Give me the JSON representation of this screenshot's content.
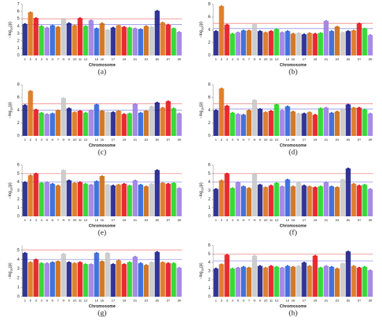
{
  "chart_data": [
    {
      "type": "manhattan",
      "caption": "(a)",
      "xlabel": "Chromosome",
      "ylabel_parts": [
        "−log",
        "10",
        "(p)"
      ],
      "categories": [
        "1",
        "2",
        "3",
        "4",
        "5",
        "6",
        "7",
        "8",
        "9",
        "10",
        "11",
        "12",
        null,
        "14",
        "15",
        null,
        "17",
        null,
        "19",
        null,
        "21",
        null,
        "23",
        null,
        "25",
        null,
        "27",
        null,
        "29"
      ],
      "values": [
        4.3,
        5.9,
        5.1,
        4.0,
        3.8,
        4.1,
        3.9,
        5.0,
        4.4,
        4.1,
        5.1,
        4.0,
        4.8,
        3.7,
        4.4,
        3.5,
        3.8,
        4.1,
        3.9,
        3.8,
        3.7,
        3.6,
        4.0,
        3.9,
        6.1,
        4.5,
        4.2,
        3.7,
        3.2
      ],
      "colors": [
        "#1b1f8a",
        "#d9731a",
        "#e6141b",
        "#22d522",
        "#9b7de3",
        "#2f63d6",
        "#cc6a12",
        "#c8c8c8"
      ],
      "thresholds": [
        {
          "value": 5,
          "color": "#ee6a6a"
        },
        {
          "value": 4.2,
          "color": "#6f73e6"
        }
      ],
      "ylim": [
        0,
        7
      ],
      "yticks": [
        0,
        1,
        2,
        3,
        4,
        5,
        6,
        7
      ]
    },
    {
      "type": "manhattan",
      "caption": "(b)",
      "xlabel": "Chromosome",
      "ylabel_parts": [
        "−log",
        "10",
        "(p)"
      ],
      "categories": [
        "1",
        "2",
        "3",
        "4",
        "5",
        "6",
        "7",
        "8",
        "9",
        "10",
        "11",
        "12",
        null,
        "14",
        "15",
        null,
        "17",
        null,
        "19",
        null,
        "21",
        null,
        "23",
        null,
        "25",
        null,
        "27",
        null,
        "29"
      ],
      "values": [
        3.8,
        7.7,
        4.8,
        3.4,
        3.6,
        3.9,
        3.9,
        4.9,
        3.8,
        3.6,
        3.8,
        4.1,
        3.6,
        3.8,
        3.4,
        3.5,
        3.3,
        3.5,
        3.4,
        3.5,
        5.4,
        3.8,
        4.5,
        3.6,
        3.8,
        3.9,
        5.0,
        4.2,
        3.2
      ],
      "colors": [
        "#1b1f8a",
        "#d9731a",
        "#e6141b",
        "#22d522",
        "#9b7de3",
        "#2f63d6",
        "#cc6a12",
        "#c8c8c8"
      ],
      "thresholds": [
        {
          "value": 5,
          "color": "#ee6a6a"
        },
        {
          "value": 4.2,
          "color": "#6f73e6"
        }
      ],
      "ylim": [
        0,
        8
      ],
      "yticks": [
        0,
        2,
        4,
        6,
        8
      ]
    },
    {
      "type": "manhattan",
      "caption": "(c)",
      "xlabel": "Chromosome",
      "ylabel_parts": [
        "−log",
        "10",
        "(p)"
      ],
      "categories": [
        "1",
        "2",
        "3",
        "4",
        "5",
        "6",
        "7",
        "8",
        "9",
        "10",
        "11",
        "12",
        null,
        "14",
        "15",
        null,
        "17",
        null,
        "19",
        null,
        "21",
        null,
        "23",
        null,
        "25",
        null,
        "27",
        null,
        "29"
      ],
      "values": [
        4.8,
        7.0,
        4.1,
        3.6,
        3.4,
        3.5,
        4.0,
        5.9,
        4.3,
        3.7,
        3.9,
        3.6,
        4.0,
        4.9,
        3.9,
        3.7,
        3.7,
        3.9,
        3.4,
        3.5,
        5.0,
        3.6,
        3.9,
        4.6,
        5.2,
        4.4,
        5.4,
        4.3,
        3.5
      ],
      "colors": [
        "#1b1f8a",
        "#d9731a",
        "#e6141b",
        "#22d522",
        "#9b7de3",
        "#2f63d6",
        "#cc6a12",
        "#c8c8c8"
      ],
      "thresholds": [
        {
          "value": 5,
          "color": "#ee6a6a"
        },
        {
          "value": 4,
          "color": "#6f73e6"
        }
      ],
      "ylim": [
        0,
        8
      ],
      "yticks": [
        0,
        2,
        4,
        6,
        8
      ]
    },
    {
      "type": "manhattan",
      "caption": "(d)",
      "xlabel": "Chromosome",
      "ylabel_parts": [
        "−log",
        "10",
        "(p)"
      ],
      "categories": [
        "1",
        "2",
        "3",
        "4",
        "5",
        "6",
        "7",
        "8",
        "9",
        "10",
        "11",
        "12",
        null,
        "14",
        "15",
        null,
        "17",
        null,
        "19",
        null,
        "21",
        null,
        "23",
        null,
        "25",
        null,
        "27",
        null,
        "29"
      ],
      "values": [
        4.0,
        7.4,
        4.7,
        3.6,
        3.4,
        3.3,
        4.0,
        5.6,
        4.2,
        3.7,
        3.9,
        4.9,
        4.0,
        4.6,
        3.8,
        3.5,
        3.5,
        3.7,
        3.3,
        4.3,
        4.4,
        3.6,
        3.8,
        4.2,
        4.9,
        4.4,
        4.4,
        4.1,
        3.5
      ],
      "colors": [
        "#1b1f8a",
        "#d9731a",
        "#e6141b",
        "#22d522",
        "#9b7de3",
        "#2f63d6",
        "#cc6a12",
        "#c8c8c8"
      ],
      "thresholds": [
        {
          "value": 5,
          "color": "#ee6a6a"
        },
        {
          "value": 4.2,
          "color": "#6f73e6"
        }
      ],
      "ylim": [
        0,
        8
      ],
      "yticks": [
        0,
        2,
        4,
        6,
        8
      ]
    },
    {
      "type": "manhattan",
      "caption": "(e)",
      "xlabel": "Chromosome",
      "ylabel_parts": [
        "−log",
        "10",
        "(p)"
      ],
      "categories": [
        "1",
        "2",
        "3",
        "4",
        "5",
        "6",
        "7",
        "8",
        "9",
        "10",
        "11",
        "12",
        null,
        "14",
        "15",
        null,
        "17",
        null,
        "19",
        null,
        "21",
        null,
        "23",
        null,
        "25",
        null,
        "27",
        null,
        "29"
      ],
      "values": [
        4.0,
        4.8,
        5.0,
        3.9,
        4.0,
        3.8,
        3.6,
        5.4,
        4.2,
        3.9,
        4.0,
        3.8,
        3.7,
        4.1,
        4.7,
        3.7,
        3.6,
        3.7,
        3.8,
        3.6,
        4.2,
        3.7,
        3.5,
        3.8,
        5.4,
        3.9,
        3.8,
        3.9,
        3.3
      ],
      "colors": [
        "#1b1f8a",
        "#d9731a",
        "#e6141b",
        "#22d522",
        "#9b7de3",
        "#2f63d6",
        "#cc6a12",
        "#c8c8c8"
      ],
      "thresholds": [
        {
          "value": 5,
          "color": "#ee6a6a"
        },
        {
          "value": 4,
          "color": "#6f73e6"
        }
      ],
      "ylim": [
        0,
        6
      ],
      "yticks": [
        0,
        1,
        2,
        3,
        4,
        5,
        6
      ]
    },
    {
      "type": "manhattan",
      "caption": "(f)",
      "xlabel": "Chromosome",
      "ylabel_parts": [
        "−log",
        "10",
        "(p)"
      ],
      "categories": [
        "1",
        "2",
        "3",
        "4",
        "5",
        "6",
        "7",
        "8",
        "9",
        "10",
        "11",
        "12",
        null,
        "14",
        "15",
        null,
        "17",
        null,
        "19",
        null,
        "21",
        null,
        "23",
        null,
        "25",
        null,
        "27",
        null,
        "29"
      ],
      "values": [
        3.2,
        4.2,
        5.0,
        3.3,
        4.0,
        3.5,
        3.3,
        5.0,
        3.7,
        3.4,
        3.6,
        3.9,
        3.5,
        4.3,
        3.5,
        4.0,
        3.6,
        3.5,
        3.4,
        3.5,
        4.0,
        3.5,
        3.4,
        4.3,
        5.6,
        3.8,
        3.6,
        3.7,
        3.2
      ],
      "colors": [
        "#1b1f8a",
        "#d9731a",
        "#e6141b",
        "#22d522",
        "#9b7de3",
        "#2f63d6",
        "#cc6a12",
        "#c8c8c8"
      ],
      "thresholds": [
        {
          "value": 5,
          "color": "#ee6a6a"
        },
        {
          "value": 4,
          "color": "#6f73e6"
        }
      ],
      "ylim": [
        0,
        6
      ],
      "yticks": [
        0,
        1,
        2,
        3,
        4,
        5,
        6
      ]
    },
    {
      "type": "manhattan",
      "caption": "(g)",
      "xlabel": "Chromosome",
      "ylabel_parts": [
        "−log",
        "10",
        "(p)"
      ],
      "categories": [
        "1",
        "2",
        "3",
        "4",
        "5",
        "6",
        "7",
        "8",
        "9",
        "10",
        "11",
        "12",
        null,
        "14",
        "15",
        null,
        "17",
        null,
        "19",
        null,
        "21",
        null,
        "23",
        null,
        "25",
        null,
        "27",
        null,
        "29"
      ],
      "values": [
        4.7,
        3.7,
        4.0,
        3.6,
        3.6,
        3.7,
        3.8,
        4.6,
        3.7,
        3.6,
        3.7,
        3.5,
        3.5,
        4.7,
        3.8,
        4.7,
        3.5,
        3.9,
        3.5,
        3.7,
        4.3,
        3.6,
        3.4,
        3.7,
        4.8,
        3.7,
        3.6,
        3.6,
        3.1
      ],
      "colors": [
        "#1b1f8a",
        "#d9731a",
        "#e6141b",
        "#22d522",
        "#9b7de3",
        "#2f63d6",
        "#cc6a12",
        "#c8c8c8"
      ],
      "thresholds": [
        {
          "value": 5,
          "color": "#ee6a6a"
        },
        {
          "value": 4,
          "color": "#6f73e6"
        }
      ],
      "ylim": [
        0,
        5.5
      ],
      "yticks": [
        0,
        1,
        2,
        3,
        4,
        5
      ]
    },
    {
      "type": "manhattan",
      "caption": "(h)",
      "xlabel": "Chromosome",
      "ylabel_parts": [
        "−log",
        "10",
        "(p)"
      ],
      "categories": [
        "1",
        "2",
        "3",
        "4",
        "5",
        "6",
        "7",
        "8",
        "9",
        "10",
        "11",
        "12",
        null,
        "14",
        "15",
        null,
        "17",
        null,
        "19",
        null,
        "21",
        null,
        "23",
        null,
        "25",
        null,
        "27",
        null,
        "29"
      ],
      "values": [
        3.3,
        3.8,
        4.9,
        3.3,
        3.4,
        3.5,
        3.4,
        4.8,
        3.6,
        3.4,
        3.6,
        3.5,
        3.4,
        3.6,
        3.5,
        3.6,
        4.0,
        3.6,
        4.8,
        3.4,
        3.6,
        3.5,
        3.3,
        3.9,
        5.3,
        3.6,
        3.4,
        3.5,
        3.1
      ],
      "colors": [
        "#1b1f8a",
        "#d9731a",
        "#e6141b",
        "#22d522",
        "#9b7de3",
        "#2f63d6",
        "#cc6a12",
        "#c8c8c8"
      ],
      "thresholds": [
        {
          "value": 5,
          "color": "#ee6a6a"
        },
        {
          "value": 4.2,
          "color": "#6f73e6"
        }
      ],
      "ylim": [
        0,
        6
      ],
      "yticks": [
        0,
        1,
        2,
        3,
        4,
        5,
        6
      ]
    }
  ]
}
